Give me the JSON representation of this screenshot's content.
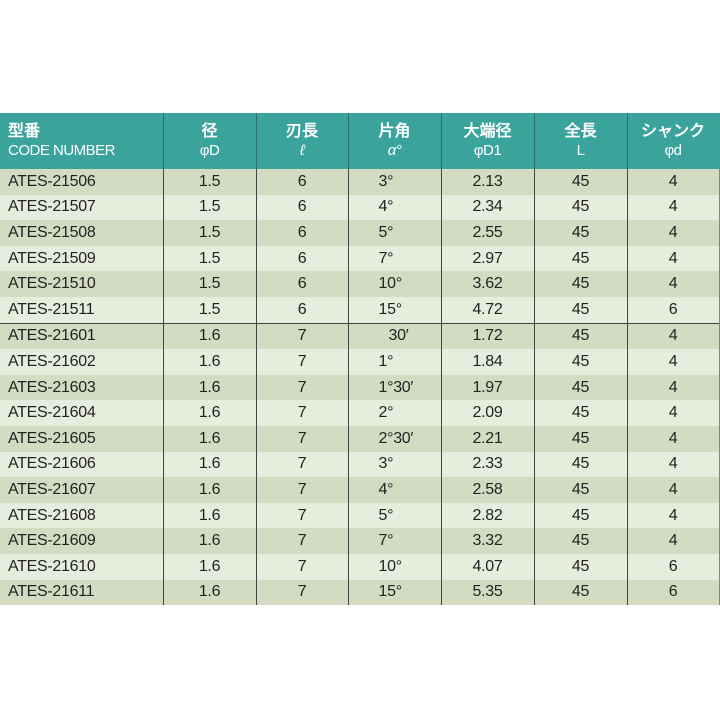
{
  "header": {
    "columns": [
      {
        "jp": "型番",
        "sub": "CODE NUMBER"
      },
      {
        "jp": "径",
        "sub": "φD"
      },
      {
        "jp": "刃長",
        "sub": "ℓ"
      },
      {
        "jp": "片角",
        "sub": "α°"
      },
      {
        "jp": "大端径",
        "sub": "φD1"
      },
      {
        "jp": "全長",
        "sub": "L"
      },
      {
        "jp": "シャンク",
        "sub": "φd"
      }
    ]
  },
  "colors": {
    "header": "#3aa39c",
    "row_dark": "#d3dcc3",
    "row_light": "#e7eddc"
  },
  "rows": [
    [
      "ATES-21506",
      "1.5",
      "6",
      "3°",
      "2.13",
      "45",
      "4"
    ],
    [
      "ATES-21507",
      "1.5",
      "6",
      "4°",
      "2.34",
      "45",
      "4"
    ],
    [
      "ATES-21508",
      "1.5",
      "6",
      "5°",
      "2.55",
      "45",
      "4"
    ],
    [
      "ATES-21509",
      "1.5",
      "6",
      "7°",
      "2.97",
      "45",
      "4"
    ],
    [
      "ATES-21510",
      "1.5",
      "6",
      "10°",
      "3.62",
      "45",
      "4"
    ],
    [
      "ATES-21511",
      "1.5",
      "6",
      "15°",
      "4.72",
      "45",
      "6"
    ],
    [
      "ATES-21601",
      "1.6",
      "7",
      "30′",
      "1.72",
      "45",
      "4"
    ],
    [
      "ATES-21602",
      "1.6",
      "7",
      "1°",
      "1.84",
      "45",
      "4"
    ],
    [
      "ATES-21603",
      "1.6",
      "7",
      "1°30′",
      "1.97",
      "45",
      "4"
    ],
    [
      "ATES-21604",
      "1.6",
      "7",
      "2°",
      "2.09",
      "45",
      "4"
    ],
    [
      "ATES-21605",
      "1.6",
      "7",
      "2°30′",
      "2.21",
      "45",
      "4"
    ],
    [
      "ATES-21606",
      "1.6",
      "7",
      "3°",
      "2.33",
      "45",
      "4"
    ],
    [
      "ATES-21607",
      "1.6",
      "7",
      "4°",
      "2.58",
      "45",
      "4"
    ],
    [
      "ATES-21608",
      "1.6",
      "7",
      "5°",
      "2.82",
      "45",
      "4"
    ],
    [
      "ATES-21609",
      "1.6",
      "7",
      "7°",
      "3.32",
      "45",
      "4"
    ],
    [
      "ATES-21610",
      "1.6",
      "7",
      "10°",
      "4.07",
      "45",
      "6"
    ],
    [
      "ATES-21611",
      "1.6",
      "7",
      "15°",
      "5.35",
      "45",
      "6"
    ]
  ]
}
